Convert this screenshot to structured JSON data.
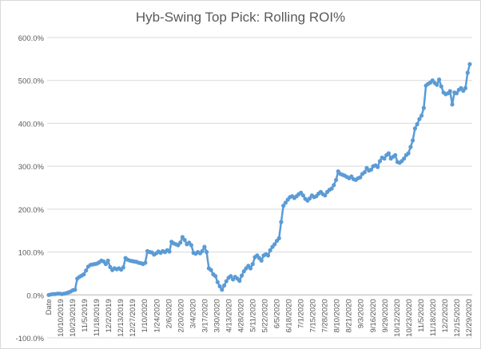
{
  "chart_data": {
    "type": "line",
    "title": "Hyb-Swing Top Pick: Rolling ROI%",
    "xlabel": "",
    "ylabel": "",
    "ylim": [
      -100,
      600
    ],
    "yticks": [
      "-100.0%",
      "0.0%",
      "100.0%",
      "200.0%",
      "300.0%",
      "400.0%",
      "500.0%",
      "600.0%"
    ],
    "xticks": [
      "Date",
      "10/10/2019",
      "10/23/2019",
      "11/5/2019",
      "11/18/2019",
      "12/2/2019",
      "12/13/2019",
      "12/27/2019",
      "1/10/2020",
      "1/24/2020",
      "2/6/2020",
      "2/20/2020",
      "3/4/2020",
      "3/17/2020",
      "3/30/2020",
      "4/13/2020",
      "4/28/2020",
      "5/11/2020",
      "5/22/2020",
      "6/5/2020",
      "6/18/2020",
      "7/1/2020",
      "7/15/2020",
      "7/28/2020",
      "8/10/2020",
      "8/21/2020",
      "9/3/2020",
      "9/16/2020",
      "9/29/2020",
      "10/12/2020",
      "10/23/2020",
      "11/5/2020",
      "11/18/2020",
      "12/2/2020",
      "12/15/2020",
      "12/29/2020"
    ],
    "grid": true,
    "legend": "none",
    "series_color": "#5b9bd5",
    "series": [
      {
        "values": [
          0,
          1,
          2,
          2,
          3,
          3,
          2,
          3,
          4,
          6,
          8,
          11,
          12,
          38,
          42,
          45,
          48,
          57,
          66,
          70,
          71,
          72,
          73,
          76,
          80,
          78,
          72,
          80,
          65,
          58,
          62,
          60,
          62,
          59,
          64,
          86,
          82,
          80,
          79,
          78,
          77,
          75,
          74,
          72,
          75,
          102,
          100,
          99,
          94,
          97,
          101,
          98,
          102,
          100,
          104,
          101,
          124,
          120,
          118,
          116,
          122,
          135,
          128,
          118,
          122,
          116,
          98,
          96,
          100,
          97,
          102,
          112,
          100,
          62,
          58,
          48,
          44,
          30,
          20,
          12,
          22,
          32,
          40,
          44,
          36,
          42,
          38,
          33,
          45,
          55,
          62,
          68,
          62,
          72,
          88,
          92,
          86,
          80,
          92,
          95,
          92,
          104,
          112,
          118,
          126,
          132,
          170,
          208,
          215,
          222,
          228,
          230,
          226,
          230,
          235,
          238,
          232,
          224,
          220,
          225,
          232,
          228,
          230,
          236,
          240,
          235,
          232,
          240,
          245,
          248,
          256,
          268,
          288,
          282,
          280,
          278,
          275,
          272,
          276,
          270,
          268,
          272,
          274,
          282,
          286,
          296,
          290,
          292,
          300,
          302,
          298,
          312,
          320,
          318,
          326,
          330,
          318,
          322,
          326,
          310,
          308,
          312,
          318,
          326,
          330,
          345,
          360,
          388,
          398,
          410,
          418,
          436,
          488,
          492,
          495,
          500,
          494,
          490,
          502,
          486,
          472,
          468,
          470,
          475,
          444,
          472,
          470,
          478,
          482,
          476,
          482,
          518,
          538
        ]
      }
    ]
  }
}
